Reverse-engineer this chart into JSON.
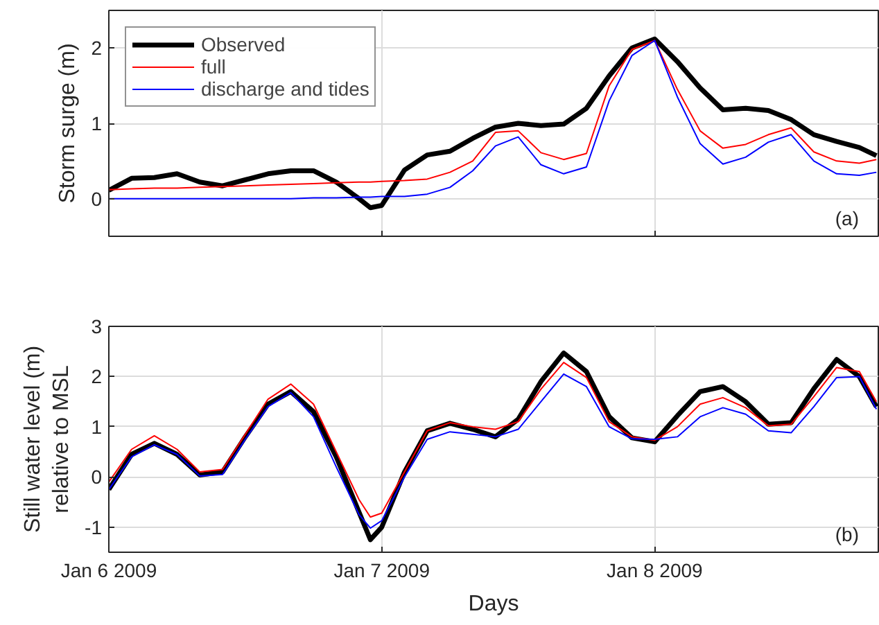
{
  "chart_data": [
    {
      "type": "line",
      "ylabel": "Storm surge (m)",
      "annotations": [
        "(a)"
      ],
      "x": [
        "2009-01-06T00:00",
        "2009-01-06T02:00",
        "2009-01-06T04:00",
        "2009-01-06T06:00",
        "2009-01-06T08:00",
        "2009-01-06T10:00",
        "2009-01-06T12:00",
        "2009-01-06T14:00",
        "2009-01-06T16:00",
        "2009-01-06T18:00",
        "2009-01-06T20:00",
        "2009-01-06T22:00",
        "2009-01-06T23:00",
        "2009-01-07T00:00",
        "2009-01-07T02:00",
        "2009-01-07T04:00",
        "2009-01-07T06:00",
        "2009-01-07T08:00",
        "2009-01-07T10:00",
        "2009-01-07T12:00",
        "2009-01-07T14:00",
        "2009-01-07T16:00",
        "2009-01-07T18:00",
        "2009-01-07T20:00",
        "2009-01-07T22:00",
        "2009-01-08T00:00",
        "2009-01-08T02:00",
        "2009-01-08T04:00",
        "2009-01-08T06:00",
        "2009-01-08T08:00",
        "2009-01-08T10:00",
        "2009-01-08T12:00",
        "2009-01-08T14:00",
        "2009-01-08T16:00",
        "2009-01-08T18:00",
        "2009-01-08T19:30"
      ],
      "series": [
        {
          "name": "Observed",
          "color": "#000000",
          "values": [
            0.11,
            0.27,
            0.28,
            0.33,
            0.22,
            0.17,
            0.25,
            0.33,
            0.37,
            0.37,
            0.22,
            0.0,
            -0.12,
            -0.09,
            0.38,
            0.58,
            0.63,
            0.8,
            0.95,
            1.0,
            0.97,
            0.99,
            1.2,
            1.63,
            2.0,
            2.12,
            1.82,
            1.47,
            1.18,
            1.2,
            1.17,
            1.05,
            0.85,
            0.76,
            0.68,
            0.57
          ]
        },
        {
          "name": "full",
          "color": "#ff0000",
          "values": [
            0.12,
            0.13,
            0.14,
            0.14,
            0.15,
            0.16,
            0.17,
            0.18,
            0.19,
            0.2,
            0.21,
            0.22,
            0.22,
            0.23,
            0.24,
            0.26,
            0.35,
            0.5,
            0.88,
            0.9,
            0.61,
            0.52,
            0.6,
            1.5,
            1.98,
            2.1,
            1.45,
            0.9,
            0.67,
            0.72,
            0.85,
            0.94,
            0.62,
            0.5,
            0.47,
            0.52
          ]
        },
        {
          "name": "discharge and tides",
          "color": "#0000ff",
          "values": [
            0.0,
            0.0,
            0.0,
            0.0,
            0.0,
            0.0,
            0.0,
            0.0,
            0.0,
            0.01,
            0.01,
            0.02,
            0.02,
            0.03,
            0.03,
            0.06,
            0.15,
            0.37,
            0.7,
            0.82,
            0.45,
            0.33,
            0.42,
            1.3,
            1.9,
            2.1,
            1.35,
            0.73,
            0.46,
            0.55,
            0.75,
            0.85,
            0.5,
            0.33,
            0.31,
            0.35
          ]
        }
      ],
      "xlim": [
        "2009-01-06T00:00",
        "2009-01-08T19:40"
      ],
      "ylim": [
        -0.5,
        2.5
      ],
      "xticks": [
        {
          "value": "2009-01-06T00:00",
          "label": null
        },
        {
          "value": "2009-01-07T00:00",
          "label": null
        },
        {
          "value": "2009-01-08T00:00",
          "label": null
        }
      ],
      "yticks": [
        0,
        1,
        2
      ],
      "tick_labels": "y",
      "grid": true,
      "legend": "top left"
    },
    {
      "type": "line",
      "ylabel": "Still water level (m)\nrelative to MSL",
      "xlabel": "Days",
      "annotations": [
        "(b)"
      ],
      "x": [
        "2009-01-06T00:00",
        "2009-01-06T02:00",
        "2009-01-06T04:00",
        "2009-01-06T06:00",
        "2009-01-06T08:00",
        "2009-01-06T10:00",
        "2009-01-06T12:00",
        "2009-01-06T14:00",
        "2009-01-06T16:00",
        "2009-01-06T18:00",
        "2009-01-06T20:00",
        "2009-01-06T22:00",
        "2009-01-06T23:00",
        "2009-01-07T00:00",
        "2009-01-07T02:00",
        "2009-01-07T04:00",
        "2009-01-07T06:00",
        "2009-01-07T08:00",
        "2009-01-07T10:00",
        "2009-01-07T12:00",
        "2009-01-07T14:00",
        "2009-01-07T16:00",
        "2009-01-07T18:00",
        "2009-01-07T20:00",
        "2009-01-07T22:00",
        "2009-01-08T00:00",
        "2009-01-08T02:00",
        "2009-01-08T04:00",
        "2009-01-08T06:00",
        "2009-01-08T08:00",
        "2009-01-08T10:00",
        "2009-01-08T12:00",
        "2009-01-08T14:00",
        "2009-01-08T16:00",
        "2009-01-08T18:00",
        "2009-01-08T19:30"
      ],
      "series": [
        {
          "color": "#000000",
          "values": [
            -0.25,
            0.45,
            0.67,
            0.45,
            0.04,
            0.1,
            0.8,
            1.45,
            1.7,
            1.3,
            0.4,
            -0.7,
            -1.25,
            -1.0,
            0.1,
            0.92,
            1.07,
            0.95,
            0.8,
            1.15,
            1.9,
            2.47,
            2.1,
            1.2,
            0.78,
            0.7,
            1.22,
            1.7,
            1.8,
            1.5,
            1.05,
            1.08,
            1.76,
            2.34,
            2.0,
            1.4
          ]
        },
        {
          "color": "#ff0000",
          "values": [
            -0.1,
            0.55,
            0.82,
            0.55,
            0.1,
            0.15,
            0.85,
            1.55,
            1.85,
            1.45,
            0.5,
            -0.45,
            -0.8,
            -0.72,
            0.1,
            0.92,
            1.08,
            1.0,
            0.95,
            1.1,
            1.75,
            2.28,
            1.98,
            1.1,
            0.8,
            0.73,
            1.0,
            1.45,
            1.58,
            1.38,
            1.02,
            1.05,
            1.6,
            2.18,
            2.1,
            1.5
          ]
        },
        {
          "color": "#0000ff",
          "values": [
            -0.25,
            0.4,
            0.64,
            0.45,
            0.02,
            0.05,
            0.75,
            1.4,
            1.68,
            1.2,
            0.2,
            -0.75,
            -1.02,
            -0.87,
            0.0,
            0.75,
            0.9,
            0.85,
            0.8,
            0.95,
            1.5,
            2.05,
            1.8,
            1.0,
            0.76,
            0.75,
            0.8,
            1.2,
            1.38,
            1.25,
            0.92,
            0.88,
            1.4,
            1.98,
            2.0,
            1.35
          ]
        }
      ],
      "xlim": [
        "2009-01-06T00:00",
        "2009-01-08T19:40"
      ],
      "ylim": [
        -1.5,
        3
      ],
      "xticks": [
        {
          "value": "2009-01-06T00:00",
          "label": "Jan 6 2009"
        },
        {
          "value": "2009-01-07T00:00",
          "label": "Jan 7 2009"
        },
        {
          "value": "2009-01-08T00:00",
          "label": "Jan 8 2009"
        }
      ],
      "yticks": [
        -1,
        0,
        1,
        2,
        3
      ],
      "grid": true
    }
  ]
}
